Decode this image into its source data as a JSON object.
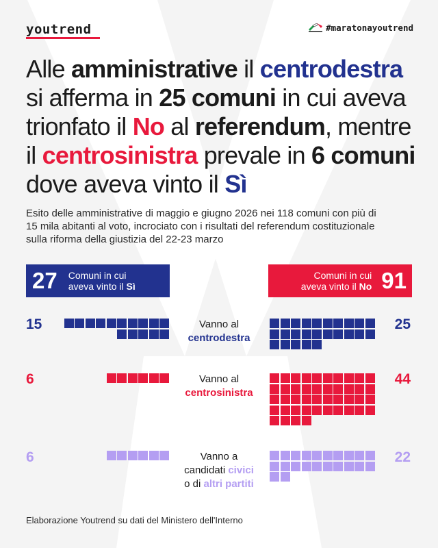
{
  "brand": {
    "logo": "youtrend",
    "hashtag": "#maratonayoutrend",
    "flag_icon": "italian-flag-icon"
  },
  "headline": {
    "segments": [
      {
        "text": "Alle ",
        "style": "plain"
      },
      {
        "text": "amministrative",
        "style": "bold"
      },
      {
        "text": " il ",
        "style": "plain"
      },
      {
        "text": "centrodestra",
        "style": "bold-blue"
      },
      {
        "text": " si afferma in ",
        "style": "plain"
      },
      {
        "text": "25 comuni",
        "style": "bold"
      },
      {
        "text": " in cui aveva trionfato il ",
        "style": "plain"
      },
      {
        "text": "No",
        "style": "bold-red"
      },
      {
        "text": " al ",
        "style": "plain"
      },
      {
        "text": "referendum",
        "style": "bold"
      },
      {
        "text": ", mentre il ",
        "style": "plain"
      },
      {
        "text": "centrosinistra",
        "style": "bold-red"
      },
      {
        "text": " prevale in ",
        "style": "plain"
      },
      {
        "text": "6 comuni",
        "style": "bold"
      },
      {
        "text": " dove aveva vinto il ",
        "style": "plain"
      },
      {
        "text": "Sì",
        "style": "bold-blue"
      }
    ]
  },
  "subtitle": "Esito delle amministrative di maggio e giugno 2026 nei 118 comuni con più di 15 mila abitanti al voto, incrociato con i risultati del referendum costituzionale sulla riforma della giustizia del 22-23 marzo",
  "footer": "Elaborazione Youtrend su dati del Ministero dell'Interno",
  "colors": {
    "si": "#22328f",
    "no": "#e8193c",
    "centrodestra": "#22328f",
    "centrosinistra": "#e8193c",
    "civici": "#b49ef2"
  },
  "chart_data": {
    "type": "waffle",
    "columns": [
      {
        "key": "si",
        "label_prefix": "Comuni in cui",
        "label_line2": "aveva vinto il ",
        "label_bold": "Sì",
        "total": 27
      },
      {
        "key": "no",
        "label_prefix": "Comuni in cui",
        "label_line2": "aveva vinto il ",
        "label_bold": "No",
        "total": 91
      }
    ],
    "rows": [
      {
        "key": "centrodestra",
        "line1": "Vanno al",
        "line2": "centrodestra",
        "si": 15,
        "no": 25
      },
      {
        "key": "centrosinistra",
        "line1": "Vanno al",
        "line2": "centrosinistra",
        "si": 6,
        "no": 44
      },
      {
        "key": "civici",
        "line1": "Vanno a",
        "line2_a": "candidati ",
        "line2_b": "civici",
        "line3_a": "o di ",
        "line3_b": "altri partiti",
        "si": 6,
        "no": 22
      }
    ]
  }
}
